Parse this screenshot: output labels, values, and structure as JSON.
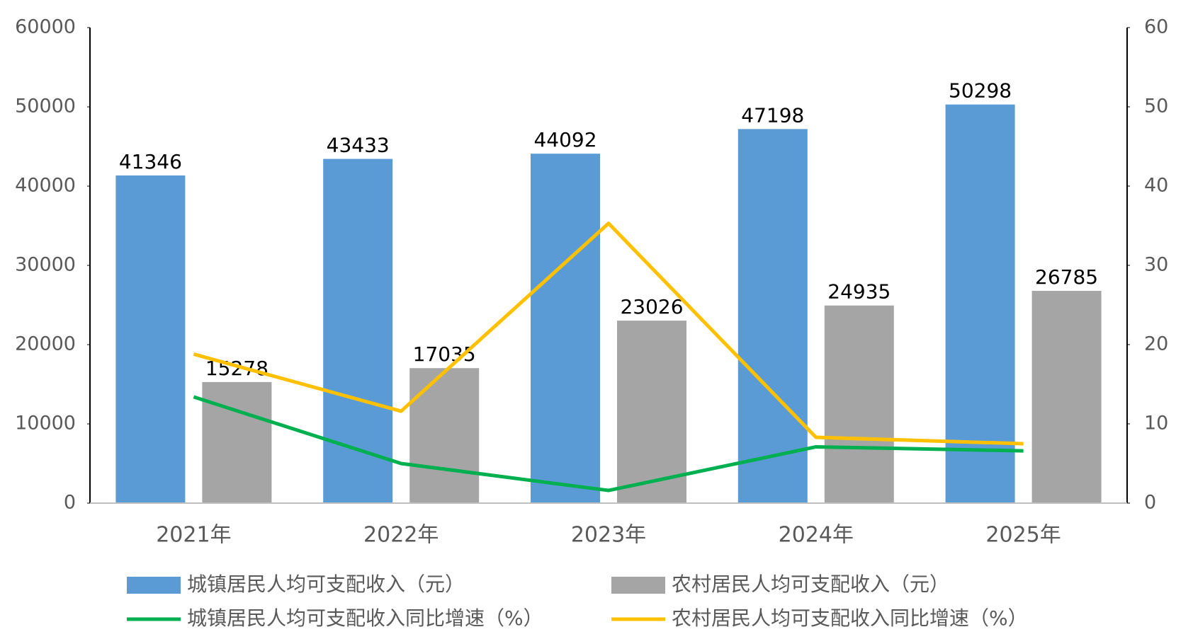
{
  "chart_data": {
    "type": "bar",
    "categories": [
      "2021年",
      "2022年",
      "2023年",
      "2024年",
      "2025年"
    ],
    "series": [
      {
        "name": "城镇居民人均可支配收入（元）",
        "color": "#5b9bd5",
        "values": [
          41346,
          43433,
          44092,
          47198,
          50298
        ]
      },
      {
        "name": "农村居民人均可支配收入（元）",
        "color": "#a5a5a5",
        "values": [
          15278,
          17035,
          23026,
          24935,
          26785
        ]
      },
      {
        "name": "城镇居民人均可支配收入同比增速（%）",
        "color": "#00b050",
        "type": "line",
        "axis": "y2",
        "values": [
          13.4,
          5.0,
          1.6,
          7.1,
          6.6
        ]
      },
      {
        "name": "农村居民人均可支配收入同比增速（%）",
        "color": "#ffc000",
        "type": "line",
        "axis": "y2",
        "values": [
          18.8,
          11.6,
          35.3,
          8.3,
          7.5
        ]
      }
    ],
    "ylim": [
      0,
      60000
    ],
    "yticks": [
      0,
      10000,
      20000,
      30000,
      40000,
      50000,
      60000
    ],
    "y2lim": [
      0,
      60
    ],
    "y2ticks": [
      0,
      10,
      20,
      30,
      40,
      50,
      60
    ]
  }
}
